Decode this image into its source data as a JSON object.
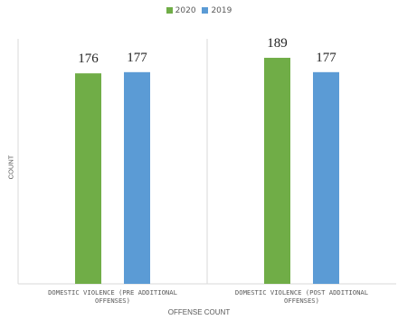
{
  "chart_data": {
    "type": "bar",
    "categories": [
      "DOMESTIC VIOLENCE (PRE ADDITIONAL OFFENSES)",
      "DOMESTIC VIOLENCE (POST ADDITIONAL OFFENSES)"
    ],
    "category_lines": [
      [
        "DOMESTIC VIOLENCE (PRE ADDITIONAL",
        "OFFENSES)"
      ],
      [
        "DOMESTIC VIOLENCE (POST ADDITIONAL",
        "OFFENSES)"
      ]
    ],
    "series": [
      {
        "name": "2020",
        "values": [
          176,
          189
        ],
        "color": "#70ad47"
      },
      {
        "name": "2019",
        "values": [
          177,
          177
        ],
        "color": "#5b9bd5"
      }
    ],
    "xlabel": "OFFENSE COUNT",
    "ylabel": "COUNT",
    "ylim": [
      0,
      195
    ],
    "grid": false,
    "legend_position": "top-center",
    "data_labels": true
  },
  "colors": {
    "axis": "#d9d9d9",
    "text": "#595959",
    "label": "#222222"
  }
}
